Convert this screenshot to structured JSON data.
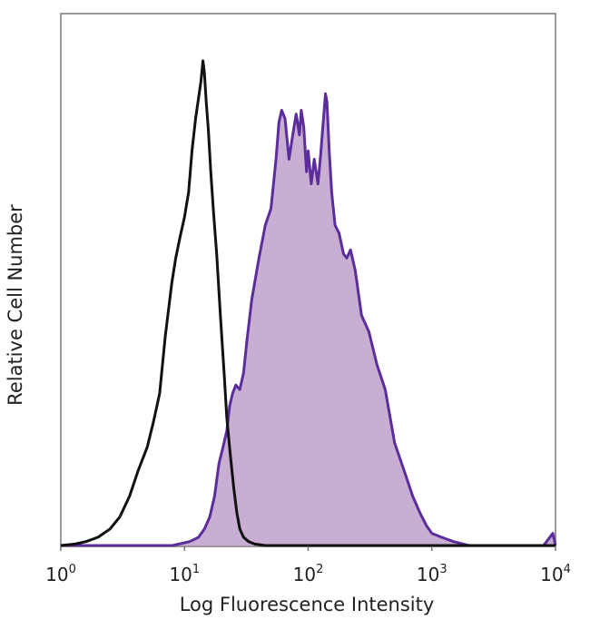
{
  "chart_data": {
    "type": "area",
    "xlabel": "Log Fluorescence Intensity",
    "ylabel": "Relative Cell Number",
    "x_scale": "log",
    "xlim": [
      1,
      10000
    ],
    "ylim": [
      0,
      100
    ],
    "ticks": [
      {
        "value": 1,
        "base": "10",
        "exp": "0"
      },
      {
        "value": 10,
        "base": "10",
        "exp": "1"
      },
      {
        "value": 100,
        "base": "10",
        "exp": "2"
      },
      {
        "value": 1000,
        "base": "10",
        "exp": "3"
      },
      {
        "value": 10000,
        "base": "10",
        "exp": "4"
      }
    ],
    "colors": {
      "control_line": "#111111",
      "stained_line": "#5b2d9b",
      "stained_fill": "#c8aed3",
      "frame": "#777777"
    },
    "series": [
      {
        "style": "outline",
        "x": [
          1.0,
          1.3,
          1.6,
          2.0,
          2.5,
          3.0,
          3.6,
          4.2,
          5.0,
          5.6,
          6.3,
          7.0,
          7.9,
          8.5,
          9.2,
          10.0,
          10.8,
          11.5,
          12.3,
          13.0,
          13.6,
          14.1,
          14.5,
          15.0,
          15.6,
          16.3,
          17.2,
          18.2,
          19.5,
          21.0,
          22.0,
          23.5,
          25.0,
          26.5,
          28.0,
          30.0,
          33.0,
          37.0,
          45.0,
          60.0,
          100.0,
          300.0,
          1000.0,
          3000.0,
          10000.0
        ],
        "y": [
          0,
          0.3,
          0.8,
          1.7,
          3.4,
          5.9,
          10.2,
          15.3,
          20.3,
          25.4,
          31.4,
          43.2,
          54.2,
          59.3,
          63.6,
          67.8,
          72.9,
          81.4,
          88.1,
          92.4,
          95.8,
          100,
          97.5,
          91.5,
          85.6,
          77.1,
          68.6,
          60.2,
          47.5,
          34.7,
          26.3,
          18.6,
          11.9,
          6.8,
          3.4,
          1.7,
          0.8,
          0.3,
          0,
          0,
          0,
          0,
          0,
          0,
          0
        ]
      },
      {
        "style": "filled",
        "x": [
          1.0,
          3.0,
          8.0,
          11.0,
          13.0,
          14.5,
          16.0,
          17.5,
          19.0,
          20.5,
          22.0,
          23.2,
          24.5,
          26.0,
          28.0,
          30.0,
          32.0,
          35.0,
          40.0,
          45.0,
          50.0,
          55.0,
          58.0,
          61.0,
          65.0,
          70.0,
          75.0,
          80.0,
          85.0,
          88.0,
          92.0,
          97.0,
          100.0,
          106.0,
          112.0,
          120.0,
          126.0,
          133.0,
          138.0,
          142.0,
          148.0,
          155.0,
          165.0,
          178.0,
          193.0,
          205.0,
          220.0,
          240.0,
          270.0,
          310.0,
          360.0,
          420.0,
          500.0,
          600.0,
          700.0,
          800.0,
          900.0,
          1000.0,
          1200.0,
          1500.0,
          2000.0,
          3000.0,
          5000.0,
          8000.0,
          9000.0,
          9500.0,
          10000.0
        ],
        "y": [
          0,
          0,
          0,
          0.8,
          1.7,
          3.4,
          5.9,
          10.2,
          16.9,
          20.3,
          23.7,
          28.8,
          31.4,
          33.1,
          32.2,
          35.6,
          42.4,
          50.8,
          59.3,
          66.1,
          69.5,
          79.7,
          87.3,
          89.8,
          88.1,
          79.7,
          84.7,
          89.0,
          84.7,
          89.8,
          86.4,
          77.1,
          81.4,
          74.6,
          79.7,
          74.6,
          80.5,
          88.1,
          93.2,
          91.5,
          81.4,
          72.9,
          66.1,
          64.4,
          60.2,
          59.3,
          61.0,
          56.8,
          47.5,
          44.1,
          37.3,
          32.2,
          21.2,
          15.3,
          10.2,
          6.8,
          4.2,
          2.5,
          1.7,
          0.8,
          0,
          0,
          0,
          0,
          1.7,
          2.5,
          0
        ]
      }
    ]
  }
}
